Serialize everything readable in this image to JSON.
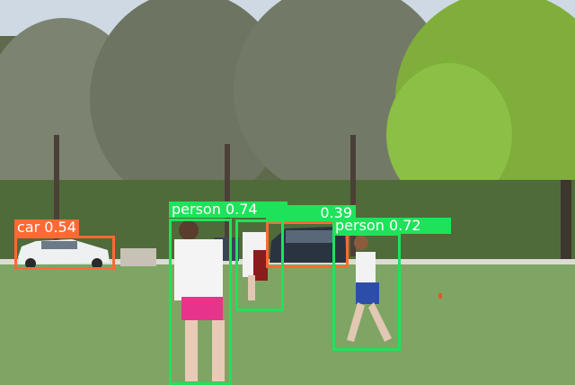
{
  "detections": [
    {
      "class": "car",
      "score": "0.54",
      "color": "#ff6a33"
    },
    {
      "class": "car",
      "score": "0.39",
      "color": "#ff6a33"
    },
    {
      "class": "person",
      "score": "0.74",
      "color": "#1ee35a"
    },
    {
      "class": "person",
      "score": "0.72",
      "color": "#1ee35a"
    },
    {
      "class": "person",
      "score": "",
      "color": "#1ee35a"
    }
  ]
}
